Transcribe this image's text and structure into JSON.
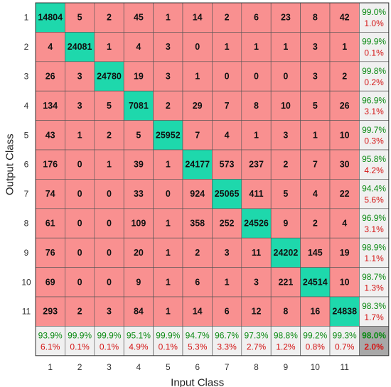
{
  "chart_data": {
    "type": "heatmap",
    "xlabel": "Input Class",
    "ylabel": "Output Class",
    "x_tick_labels": [
      "1",
      "2",
      "3",
      "4",
      "5",
      "6",
      "7",
      "8",
      "9",
      "10",
      "11"
    ],
    "y_tick_labels": [
      "1",
      "2",
      "3",
      "4",
      "5",
      "6",
      "7",
      "8",
      "9",
      "10",
      "11"
    ],
    "matrix": [
      [
        14804,
        5,
        2,
        45,
        1,
        14,
        2,
        6,
        23,
        8,
        42
      ],
      [
        4,
        24081,
        1,
        4,
        3,
        0,
        1,
        1,
        1,
        3,
        1
      ],
      [
        26,
        3,
        24780,
        19,
        3,
        1,
        0,
        0,
        0,
        3,
        2
      ],
      [
        134,
        3,
        5,
        7081,
        2,
        29,
        7,
        8,
        10,
        5,
        26
      ],
      [
        43,
        1,
        2,
        5,
        25952,
        7,
        4,
        1,
        3,
        1,
        10
      ],
      [
        176,
        0,
        1,
        39,
        1,
        24177,
        573,
        237,
        2,
        7,
        30
      ],
      [
        74,
        0,
        0,
        33,
        0,
        924,
        25065,
        411,
        5,
        4,
        22
      ],
      [
        61,
        0,
        0,
        109,
        1,
        358,
        252,
        24526,
        9,
        2,
        4
      ],
      [
        76,
        0,
        0,
        20,
        1,
        2,
        3,
        11,
        24202,
        145,
        19
      ],
      [
        69,
        0,
        0,
        9,
        1,
        6,
        1,
        3,
        221,
        24514,
        10
      ],
      [
        293,
        2,
        3,
        84,
        1,
        14,
        6,
        12,
        8,
        16,
        24838
      ]
    ],
    "row_summary": [
      [
        "99.0%",
        "1.0%"
      ],
      [
        "99.9%",
        "0.1%"
      ],
      [
        "99.8%",
        "0.2%"
      ],
      [
        "96.9%",
        "3.1%"
      ],
      [
        "99.7%",
        "0.3%"
      ],
      [
        "95.8%",
        "4.2%"
      ],
      [
        "94.4%",
        "5.6%"
      ],
      [
        "96.9%",
        "3.1%"
      ],
      [
        "98.9%",
        "1.1%"
      ],
      [
        "98.7%",
        "1.3%"
      ],
      [
        "98.3%",
        "1.7%"
      ]
    ],
    "col_summary": [
      [
        "93.9%",
        "6.1%"
      ],
      [
        "99.9%",
        "0.1%"
      ],
      [
        "99.9%",
        "0.1%"
      ],
      [
        "95.1%",
        "4.9%"
      ],
      [
        "99.9%",
        "0.1%"
      ],
      [
        "94.7%",
        "5.3%"
      ],
      [
        "96.7%",
        "3.3%"
      ],
      [
        "97.3%",
        "2.7%"
      ],
      [
        "98.8%",
        "1.2%"
      ],
      [
        "99.2%",
        "0.8%"
      ],
      [
        "99.3%",
        "0.7%"
      ]
    ],
    "overall": [
      "98.0%",
      "2.0%"
    ],
    "colors": {
      "diagonal": "#1ed8ac",
      "off_diagonal": "#f99090",
      "summary_bg": "#f0f0f0",
      "overall_bg": "#a8a8a8",
      "correct_text": "#0a8a12",
      "error_text": "#d41414",
      "grid": "#555555"
    }
  }
}
